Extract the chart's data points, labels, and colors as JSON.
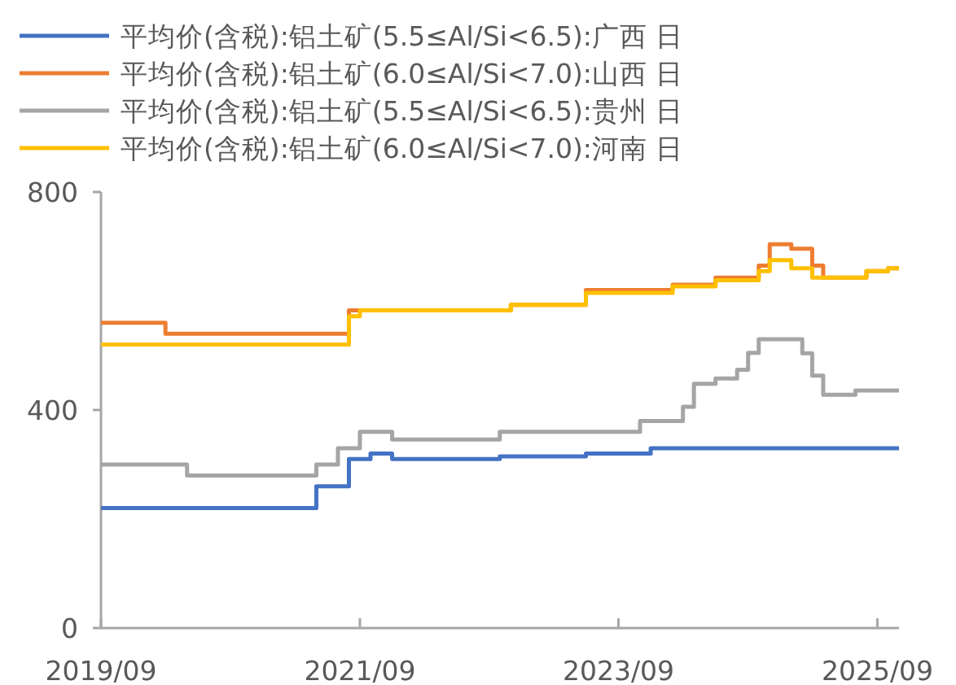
{
  "chart_data": {
    "type": "step",
    "legend": "top",
    "line_style": "solid",
    "xlim": [
      "2019-09",
      "2025-11"
    ],
    "ylim": [
      0,
      800
    ],
    "yticks": [
      0,
      400,
      800
    ],
    "xticks": [
      {
        "value": "2019-09",
        "label": "2019/09"
      },
      {
        "value": "2021-09",
        "label": "2021/09"
      },
      {
        "value": "2023-09",
        "label": "2023/09"
      },
      {
        "value": "2025-09",
        "label": "2025/09"
      }
    ],
    "series": [
      {
        "name": "平均价(含税):铝土矿(5.5≤Al/Si<6.5):广西 日",
        "color": "#4472c4",
        "x": [
          "2019-09",
          "2021-05",
          "2021-08",
          "2021-10",
          "2021-12",
          "2022-10",
          "2023-06",
          "2023-12",
          "2025-11"
        ],
        "values": [
          220,
          260,
          310,
          320,
          310,
          315,
          320,
          330,
          330
        ]
      },
      {
        "name": "平均价(含税):铝土矿(6.0≤Al/Si<7.0):山西 日",
        "color": "#ed7d31",
        "x": [
          "2019-09",
          "2020-03",
          "2021-08",
          "2022-11",
          "2023-06",
          "2024-02",
          "2024-06",
          "2024-10",
          "2024-11",
          "2025-01",
          "2025-03",
          "2025-04",
          "2025-08",
          "2025-10",
          "2025-11"
        ],
        "values": [
          560,
          540,
          583,
          593,
          620,
          630,
          643,
          665,
          704,
          696,
          665,
          643,
          655,
          660,
          660
        ]
      },
      {
        "name": "平均价(含税):铝土矿(5.5≤Al/Si<6.5):贵州 日",
        "color": "#a5a5a5",
        "x": [
          "2019-09",
          "2020-05",
          "2021-05",
          "2021-07",
          "2021-09",
          "2021-12",
          "2022-10",
          "2023-11",
          "2024-03",
          "2024-04",
          "2024-06",
          "2024-08",
          "2024-09",
          "2024-10",
          "2025-02",
          "2025-03",
          "2025-04",
          "2025-07",
          "2025-11"
        ],
        "values": [
          300,
          280,
          300,
          330,
          360,
          346,
          360,
          380,
          406,
          448,
          458,
          474,
          505,
          530,
          504,
          463,
          428,
          436,
          436
        ]
      },
      {
        "name": "平均价(含税):铝土矿(6.0≤Al/Si<7.0):河南 日",
        "color": "#ffc000",
        "x": [
          "2019-09",
          "2021-08",
          "2021-09",
          "2022-11",
          "2023-06",
          "2024-02",
          "2024-06",
          "2024-10",
          "2024-11",
          "2025-01",
          "2025-03",
          "2025-08",
          "2025-10",
          "2025-11"
        ],
        "values": [
          520,
          572,
          583,
          593,
          615,
          627,
          638,
          655,
          675,
          660,
          643,
          655,
          660,
          660
        ]
      }
    ]
  }
}
